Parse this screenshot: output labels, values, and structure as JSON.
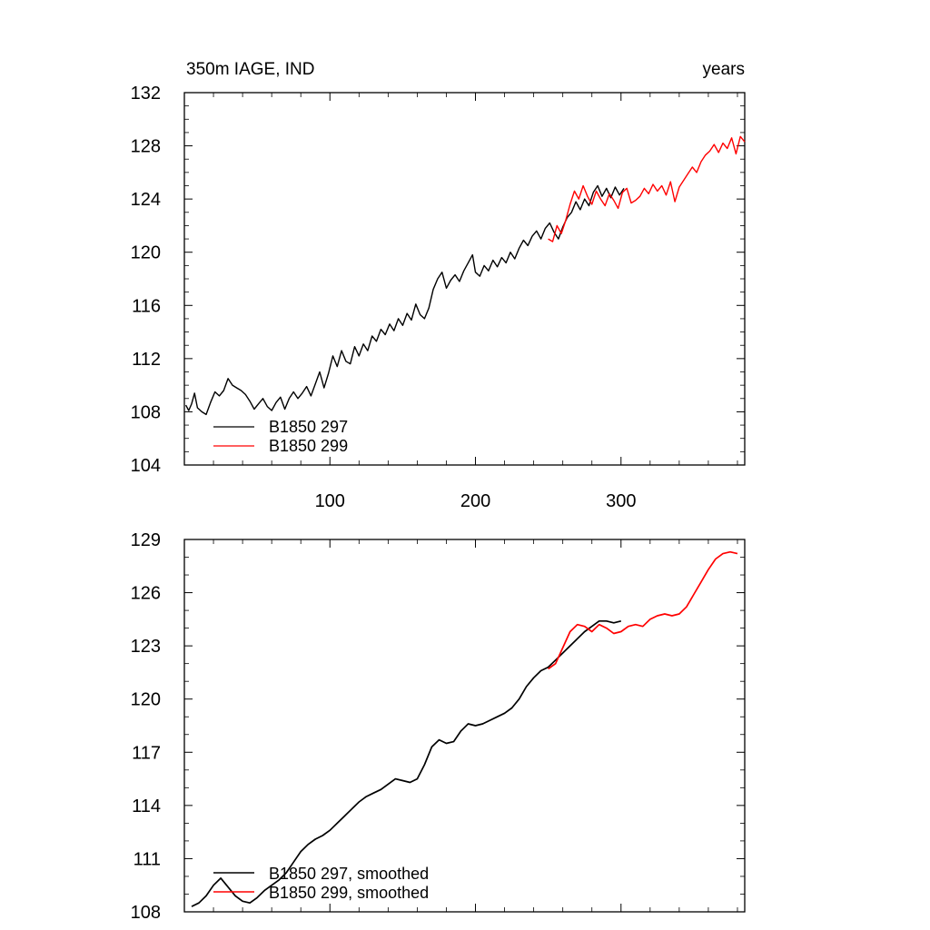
{
  "chart_data": [
    {
      "type": "line",
      "title_left": "350m IAGE, IND",
      "title_right": "years",
      "xlabel": "",
      "ylabel": "",
      "xlim": [
        0,
        385
      ],
      "ylim": [
        104,
        132
      ],
      "x_ticks": [
        100,
        200,
        300
      ],
      "x_tick_labels": [
        "100",
        "200",
        "300"
      ],
      "y_ticks": [
        104,
        108,
        112,
        116,
        120,
        124,
        128,
        132
      ],
      "y_tick_labels": [
        "104",
        "108",
        "112",
        "116",
        "120",
        "124",
        "128",
        "132"
      ],
      "grid": false,
      "legend_position": "bottom-left",
      "series": [
        {
          "name": "B1850 297",
          "color": "#000000",
          "points": [
            [
              1,
              108.5
            ],
            [
              3,
              108.1
            ],
            [
              5,
              108.6
            ],
            [
              7,
              109.4
            ],
            [
              9,
              108.3
            ],
            [
              12,
              108.0
            ],
            [
              15,
              107.8
            ],
            [
              18,
              108.7
            ],
            [
              21,
              109.5
            ],
            [
              24,
              109.2
            ],
            [
              27,
              109.6
            ],
            [
              30,
              110.5
            ],
            [
              33,
              110.0
            ],
            [
              36,
              109.8
            ],
            [
              39,
              109.6
            ],
            [
              42,
              109.3
            ],
            [
              45,
              108.8
            ],
            [
              48,
              108.2
            ],
            [
              51,
              108.6
            ],
            [
              54,
              109.0
            ],
            [
              57,
              108.4
            ],
            [
              60,
              108.1
            ],
            [
              63,
              108.7
            ],
            [
              66,
              109.1
            ],
            [
              69,
              108.2
            ],
            [
              72,
              109.0
            ],
            [
              75,
              109.5
            ],
            [
              78,
              109.0
            ],
            [
              81,
              109.4
            ],
            [
              84,
              109.9
            ],
            [
              87,
              109.2
            ],
            [
              90,
              110.1
            ],
            [
              93,
              111.0
            ],
            [
              96,
              109.8
            ],
            [
              99,
              110.9
            ],
            [
              102,
              112.2
            ],
            [
              105,
              111.4
            ],
            [
              108,
              112.6
            ],
            [
              111,
              111.8
            ],
            [
              114,
              111.6
            ],
            [
              117,
              112.9
            ],
            [
              120,
              112.2
            ],
            [
              123,
              113.1
            ],
            [
              126,
              112.6
            ],
            [
              129,
              113.7
            ],
            [
              132,
              113.3
            ],
            [
              135,
              114.2
            ],
            [
              138,
              113.8
            ],
            [
              141,
              114.6
            ],
            [
              144,
              114.1
            ],
            [
              147,
              115.0
            ],
            [
              150,
              114.5
            ],
            [
              153,
              115.4
            ],
            [
              156,
              114.9
            ],
            [
              159,
              116.1
            ],
            [
              162,
              115.3
            ],
            [
              165,
              115.0
            ],
            [
              168,
              115.8
            ],
            [
              171,
              117.2
            ],
            [
              174,
              118.0
            ],
            [
              177,
              118.5
            ],
            [
              180,
              117.3
            ],
            [
              183,
              117.9
            ],
            [
              186,
              118.3
            ],
            [
              189,
              117.8
            ],
            [
              192,
              118.6
            ],
            [
              195,
              119.2
            ],
            [
              198,
              119.8
            ],
            [
              200,
              118.5
            ],
            [
              203,
              118.2
            ],
            [
              206,
              119.0
            ],
            [
              209,
              118.6
            ],
            [
              212,
              119.4
            ],
            [
              215,
              118.9
            ],
            [
              218,
              119.6
            ],
            [
              221,
              119.2
            ],
            [
              224,
              120.0
            ],
            [
              227,
              119.5
            ],
            [
              230,
              120.3
            ],
            [
              233,
              120.9
            ],
            [
              236,
              120.5
            ],
            [
              239,
              121.2
            ],
            [
              242,
              121.6
            ],
            [
              245,
              121.0
            ],
            [
              248,
              121.8
            ],
            [
              251,
              122.2
            ],
            [
              254,
              121.5
            ],
            [
              257,
              121.0
            ],
            [
              260,
              121.9
            ],
            [
              263,
              122.6
            ],
            [
              266,
              123.0
            ],
            [
              269,
              123.8
            ],
            [
              272,
              123.2
            ],
            [
              275,
              124.0
            ],
            [
              278,
              123.5
            ],
            [
              281,
              124.5
            ],
            [
              284,
              125.0
            ],
            [
              287,
              124.2
            ],
            [
              290,
              124.8
            ],
            [
              293,
              124.1
            ],
            [
              296,
              124.9
            ],
            [
              299,
              124.3
            ],
            [
              302,
              124.8
            ]
          ]
        },
        {
          "name": "B1850 299",
          "color": "#ff0000",
          "points": [
            [
              250,
              121.0
            ],
            [
              253,
              120.8
            ],
            [
              256,
              122.0
            ],
            [
              259,
              121.4
            ],
            [
              262,
              122.4
            ],
            [
              265,
              123.6
            ],
            [
              268,
              124.6
            ],
            [
              271,
              124.0
            ],
            [
              274,
              125.0
            ],
            [
              277,
              124.2
            ],
            [
              280,
              123.6
            ],
            [
              283,
              124.6
            ],
            [
              286,
              124.0
            ],
            [
              289,
              123.5
            ],
            [
              292,
              124.4
            ],
            [
              295,
              123.9
            ],
            [
              298,
              123.3
            ],
            [
              301,
              124.5
            ],
            [
              304,
              124.8
            ],
            [
              307,
              123.7
            ],
            [
              310,
              123.9
            ],
            [
              313,
              124.2
            ],
            [
              316,
              124.8
            ],
            [
              319,
              124.4
            ],
            [
              322,
              125.1
            ],
            [
              325,
              124.6
            ],
            [
              328,
              125.0
            ],
            [
              331,
              124.3
            ],
            [
              334,
              125.3
            ],
            [
              337,
              123.8
            ],
            [
              340,
              124.9
            ],
            [
              343,
              125.4
            ],
            [
              346,
              125.9
            ],
            [
              349,
              126.4
            ],
            [
              352,
              126.0
            ],
            [
              355,
              126.8
            ],
            [
              358,
              127.3
            ],
            [
              361,
              127.6
            ],
            [
              364,
              128.1
            ],
            [
              367,
              127.5
            ],
            [
              370,
              128.2
            ],
            [
              373,
              127.8
            ],
            [
              376,
              128.6
            ],
            [
              379,
              127.4
            ],
            [
              382,
              128.7
            ],
            [
              385,
              128.3
            ]
          ]
        }
      ]
    },
    {
      "type": "line",
      "xlabel": "",
      "ylabel": "",
      "xlim": [
        0,
        385
      ],
      "ylim": [
        108,
        129
      ],
      "x_ticks": [
        100,
        200,
        300
      ],
      "y_ticks": [
        108,
        111,
        114,
        117,
        120,
        123,
        126,
        129
      ],
      "y_tick_labels": [
        "108",
        "111",
        "114",
        "117",
        "120",
        "123",
        "126",
        "129"
      ],
      "grid": false,
      "legend_position": "bottom-left",
      "series": [
        {
          "name": "B1850 297, smoothed",
          "color": "#000000",
          "points": [
            [
              5,
              108.3
            ],
            [
              10,
              108.5
            ],
            [
              15,
              108.9
            ],
            [
              20,
              109.5
            ],
            [
              25,
              109.9
            ],
            [
              30,
              109.4
            ],
            [
              35,
              108.9
            ],
            [
              40,
              108.6
            ],
            [
              45,
              108.5
            ],
            [
              50,
              108.8
            ],
            [
              55,
              109.2
            ],
            [
              60,
              109.5
            ],
            [
              65,
              109.8
            ],
            [
              70,
              110.2
            ],
            [
              75,
              110.8
            ],
            [
              80,
              111.4
            ],
            [
              85,
              111.8
            ],
            [
              90,
              112.1
            ],
            [
              95,
              112.3
            ],
            [
              100,
              112.6
            ],
            [
              105,
              113.0
            ],
            [
              110,
              113.4
            ],
            [
              115,
              113.8
            ],
            [
              120,
              114.2
            ],
            [
              125,
              114.5
            ],
            [
              130,
              114.7
            ],
            [
              135,
              114.9
            ],
            [
              140,
              115.2
            ],
            [
              145,
              115.5
            ],
            [
              150,
              115.4
            ],
            [
              155,
              115.3
            ],
            [
              160,
              115.5
            ],
            [
              165,
              116.3
            ],
            [
              170,
              117.3
            ],
            [
              175,
              117.7
            ],
            [
              180,
              117.5
            ],
            [
              185,
              117.6
            ],
            [
              190,
              118.2
            ],
            [
              195,
              118.6
            ],
            [
              200,
              118.5
            ],
            [
              205,
              118.6
            ],
            [
              210,
              118.8
            ],
            [
              215,
              119.0
            ],
            [
              220,
              119.2
            ],
            [
              225,
              119.5
            ],
            [
              230,
              120.0
            ],
            [
              235,
              120.7
            ],
            [
              240,
              121.2
            ],
            [
              245,
              121.6
            ],
            [
              250,
              121.8
            ],
            [
              255,
              122.2
            ],
            [
              260,
              122.6
            ],
            [
              265,
              123.0
            ],
            [
              270,
              123.4
            ],
            [
              275,
              123.8
            ],
            [
              280,
              124.1
            ],
            [
              285,
              124.4
            ],
            [
              290,
              124.4
            ],
            [
              295,
              124.3
            ],
            [
              300,
              124.4
            ]
          ]
        },
        {
          "name": "B1850 299, smoothed",
          "color": "#ff0000",
          "points": [
            [
              250,
              121.7
            ],
            [
              255,
              122.0
            ],
            [
              260,
              122.9
            ],
            [
              265,
              123.8
            ],
            [
              270,
              124.2
            ],
            [
              275,
              124.1
            ],
            [
              280,
              123.8
            ],
            [
              285,
              124.2
            ],
            [
              290,
              124.0
            ],
            [
              295,
              123.7
            ],
            [
              300,
              123.8
            ],
            [
              305,
              124.1
            ],
            [
              310,
              124.2
            ],
            [
              315,
              124.1
            ],
            [
              320,
              124.5
            ],
            [
              325,
              124.7
            ],
            [
              330,
              124.8
            ],
            [
              335,
              124.7
            ],
            [
              340,
              124.8
            ],
            [
              345,
              125.2
            ],
            [
              350,
              125.9
            ],
            [
              355,
              126.6
            ],
            [
              360,
              127.3
            ],
            [
              365,
              127.9
            ],
            [
              370,
              128.2
            ],
            [
              375,
              128.3
            ],
            [
              380,
              128.2
            ]
          ]
        }
      ]
    }
  ]
}
